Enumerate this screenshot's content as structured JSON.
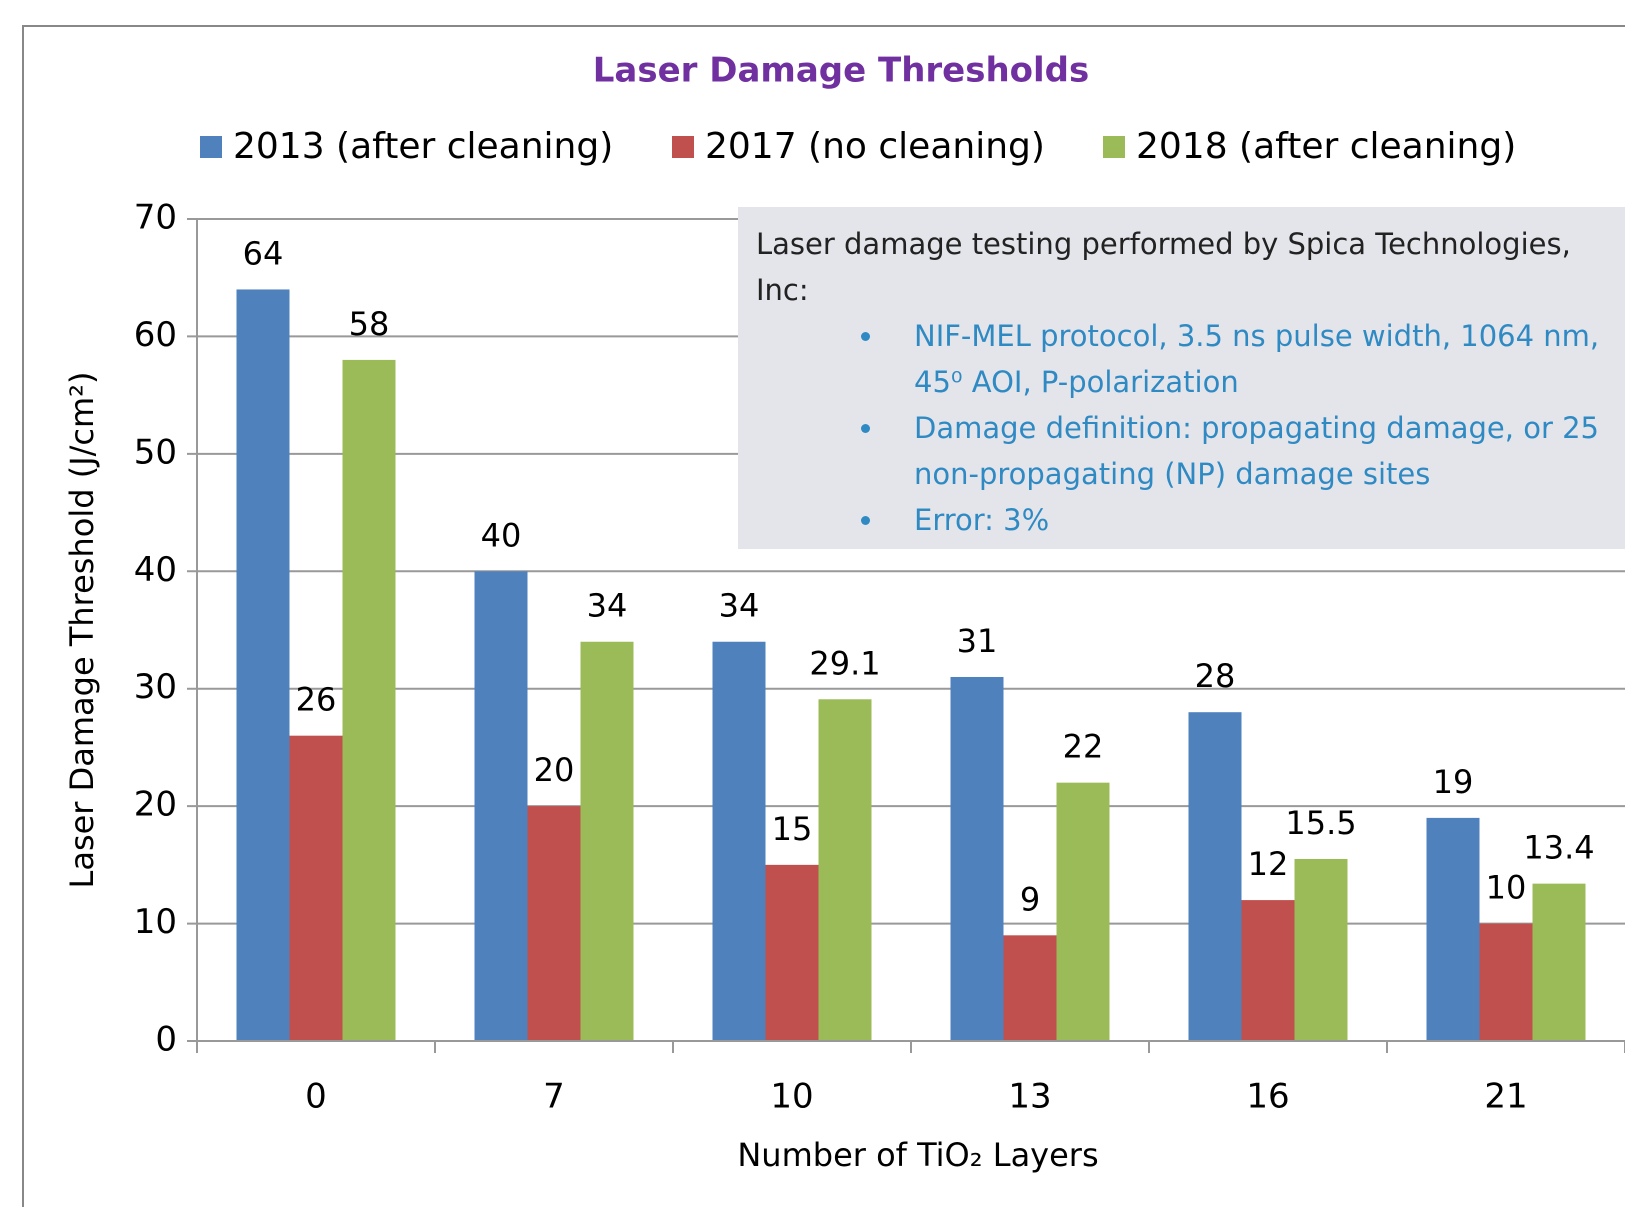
{
  "chart_data": {
    "type": "bar",
    "title": "Laser Damage Thresholds",
    "y_label": "Laser Damage Threshold (J/cm²)",
    "x_label": "Number of TiO₂ Layers",
    "categories": [
      "0",
      "7",
      "10",
      "13",
      "16",
      "21"
    ],
    "series": [
      {
        "name": "2013 (after cleaning)",
        "color": "#4f81bd",
        "values": [
          64,
          40,
          34,
          31,
          28,
          19
        ]
      },
      {
        "name": "2017 (no cleaning)",
        "color": "#c0504d",
        "values": [
          26,
          20,
          15,
          9,
          12,
          10
        ]
      },
      {
        "name": "2018 (after cleaning)",
        "color": "#9bbb59",
        "values": [
          58,
          34,
          29.1,
          22,
          15.5,
          13.4
        ]
      }
    ],
    "ylim": [
      0,
      70
    ],
    "yticks": [
      0,
      10,
      20,
      30,
      40,
      50,
      60,
      70
    ],
    "grid": true,
    "legend": "top",
    "annotation": {
      "heading": "Laser damage testing performed by Spica Technologies, Inc:",
      "bullets": [
        "NIF-MEL protocol, 3.5 ns pulse width, 1064 nm, 45⁰ AOI, P-polarization",
        "Damage definition: propagating damage, or 25 non-propagating (NP) damage sites",
        "Error: 3%"
      ]
    }
  }
}
